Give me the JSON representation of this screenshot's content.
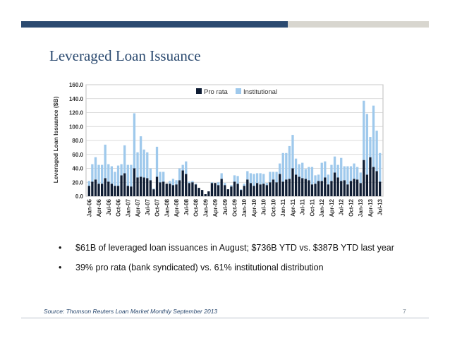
{
  "slide": {
    "title": "Leveraged Loan Issuance",
    "bullets": [
      "$61B of leveraged loan issuances in August; $736B YTD vs. $387B YTD last year",
      "39% pro rata (bank syndicated) vs. 61% institutional distribution"
    ],
    "bullet_symbol": "•",
    "source": "Source: Thomson Reuters Loan Market Monthly September 2013",
    "page_number": "7"
  },
  "colors": {
    "title": "#2b4a70",
    "bar_top": "#2b4a70",
    "bar_divider": "#d8d6cf",
    "pro_rata": "#0e1c33",
    "institutional": "#9fc9ec",
    "grid": "#cfcfcf"
  },
  "chart_data": {
    "type": "bar",
    "stacked": true,
    "ylabel": "Leveraged Loan Issuance ($B)",
    "ylim": [
      0,
      160
    ],
    "yticks": [
      "0.0",
      "20.0",
      "40.0",
      "60.0",
      "80.0",
      "100.0",
      "120.0",
      "140.0",
      "160.0"
    ],
    "grid": true,
    "legend_position": "top-center",
    "categories": [
      "Jan-06",
      "Feb-06",
      "Mar-06",
      "Apr-06",
      "May-06",
      "Jun-06",
      "Jul-06",
      "Aug-06",
      "Sep-06",
      "Oct-06",
      "Nov-06",
      "Dec-06",
      "Jan-07",
      "Feb-07",
      "Mar-07",
      "Apr-07",
      "May-07",
      "Jun-07",
      "Jul-07",
      "Aug-07",
      "Sep-07",
      "Oct-07",
      "Nov-07",
      "Dec-07",
      "Jan-08",
      "Feb-08",
      "Mar-08",
      "Apr-08",
      "May-08",
      "Jun-08",
      "Jul-08",
      "Aug-08",
      "Sep-08",
      "Oct-08",
      "Nov-08",
      "Dec-08",
      "Jan-09",
      "Feb-09",
      "Mar-09",
      "Apr-09",
      "May-09",
      "Jun-09",
      "Jul-09",
      "Aug-09",
      "Sep-09",
      "Oct-09",
      "Nov-09",
      "Dec-09",
      "Jan-10",
      "Feb-10",
      "Mar-10",
      "Apr-10",
      "May-10",
      "Jun-10",
      "Jul-10",
      "Aug-10",
      "Sep-10",
      "Oct-10",
      "Nov-10",
      "Dec-10",
      "Jan-11",
      "Feb-11",
      "Mar-11",
      "Apr-11",
      "May-11",
      "Jun-11",
      "Jul-11",
      "Aug-11",
      "Sep-11",
      "Oct-11",
      "Nov-11",
      "Dec-11",
      "Jan-12",
      "Feb-12",
      "Mar-12",
      "Apr-12",
      "May-12",
      "Jun-12",
      "Jul-12",
      "Aug-12",
      "Sep-12",
      "Oct-12",
      "Nov-12",
      "Dec-12",
      "Jan-13",
      "Feb-13",
      "Mar-13",
      "Apr-13",
      "May-13",
      "Jun-13",
      "Jul-13"
    ],
    "xtick_labels": [
      "Jan-06",
      "Apr-06",
      "Jul-06",
      "Oct-06",
      "Jan-07",
      "Apr-07",
      "Jul-07",
      "Oct-07",
      "Jan-08",
      "Apr-08",
      "Jul-08",
      "Oct-08",
      "Jan-09",
      "Apr-09",
      "Jul-09",
      "Oct-09",
      "Jan-10",
      "Apr-10",
      "Jul-10",
      "Oct-10",
      "Jan-11",
      "Apr-11",
      "Jul-11",
      "Oct-11",
      "Jan-12",
      "Apr-12",
      "Jul-12",
      "Oct-12",
      "Jan-13",
      "Apr-13",
      "Jul-13"
    ],
    "series": [
      {
        "name": "Pro rata",
        "color": "#0e1c33",
        "values": [
          15,
          21,
          24,
          18,
          18,
          26,
          21,
          18,
          15,
          15,
          30,
          33,
          15,
          14,
          40,
          27,
          28,
          27,
          26,
          23,
          10,
          28,
          20,
          21,
          18,
          18,
          16,
          17,
          23,
          37,
          32,
          19,
          20,
          17,
          12,
          9,
          3,
          7,
          19,
          19,
          16,
          25,
          16,
          10,
          14,
          21,
          18,
          9,
          15,
          24,
          19,
          15,
          19,
          17,
          18,
          16,
          20,
          24,
          20,
          32,
          21,
          24,
          25,
          40,
          31,
          28,
          26,
          25,
          23,
          17,
          18,
          22,
          22,
          27,
          17,
          22,
          34,
          27,
          22,
          23,
          17,
          22,
          25,
          24,
          19,
          52,
          31,
          56,
          42,
          36,
          21
        ]
      },
      {
        "name": "Institutional",
        "color": "#9fc9ec",
        "values": [
          7,
          25,
          32,
          27,
          27,
          48,
          25,
          25,
          20,
          29,
          16,
          40,
          30,
          31,
          79,
          36,
          58,
          40,
          37,
          17,
          1,
          43,
          15,
          14,
          0,
          4,
          9,
          6,
          17,
          8,
          18,
          2,
          2,
          1,
          0,
          0,
          0,
          0,
          1,
          0,
          4,
          8,
          3,
          0,
          2,
          9,
          11,
          1,
          3,
          12,
          14,
          17,
          14,
          16,
          14,
          3,
          15,
          11,
          15,
          15,
          41,
          38,
          47,
          48,
          23,
          18,
          22,
          14,
          19,
          25,
          12,
          9,
          26,
          23,
          14,
          23,
          23,
          18,
          33,
          20,
          26,
          21,
          22,
          18,
          15,
          85,
          87,
          29,
          88,
          58,
          41
        ]
      }
    ]
  }
}
